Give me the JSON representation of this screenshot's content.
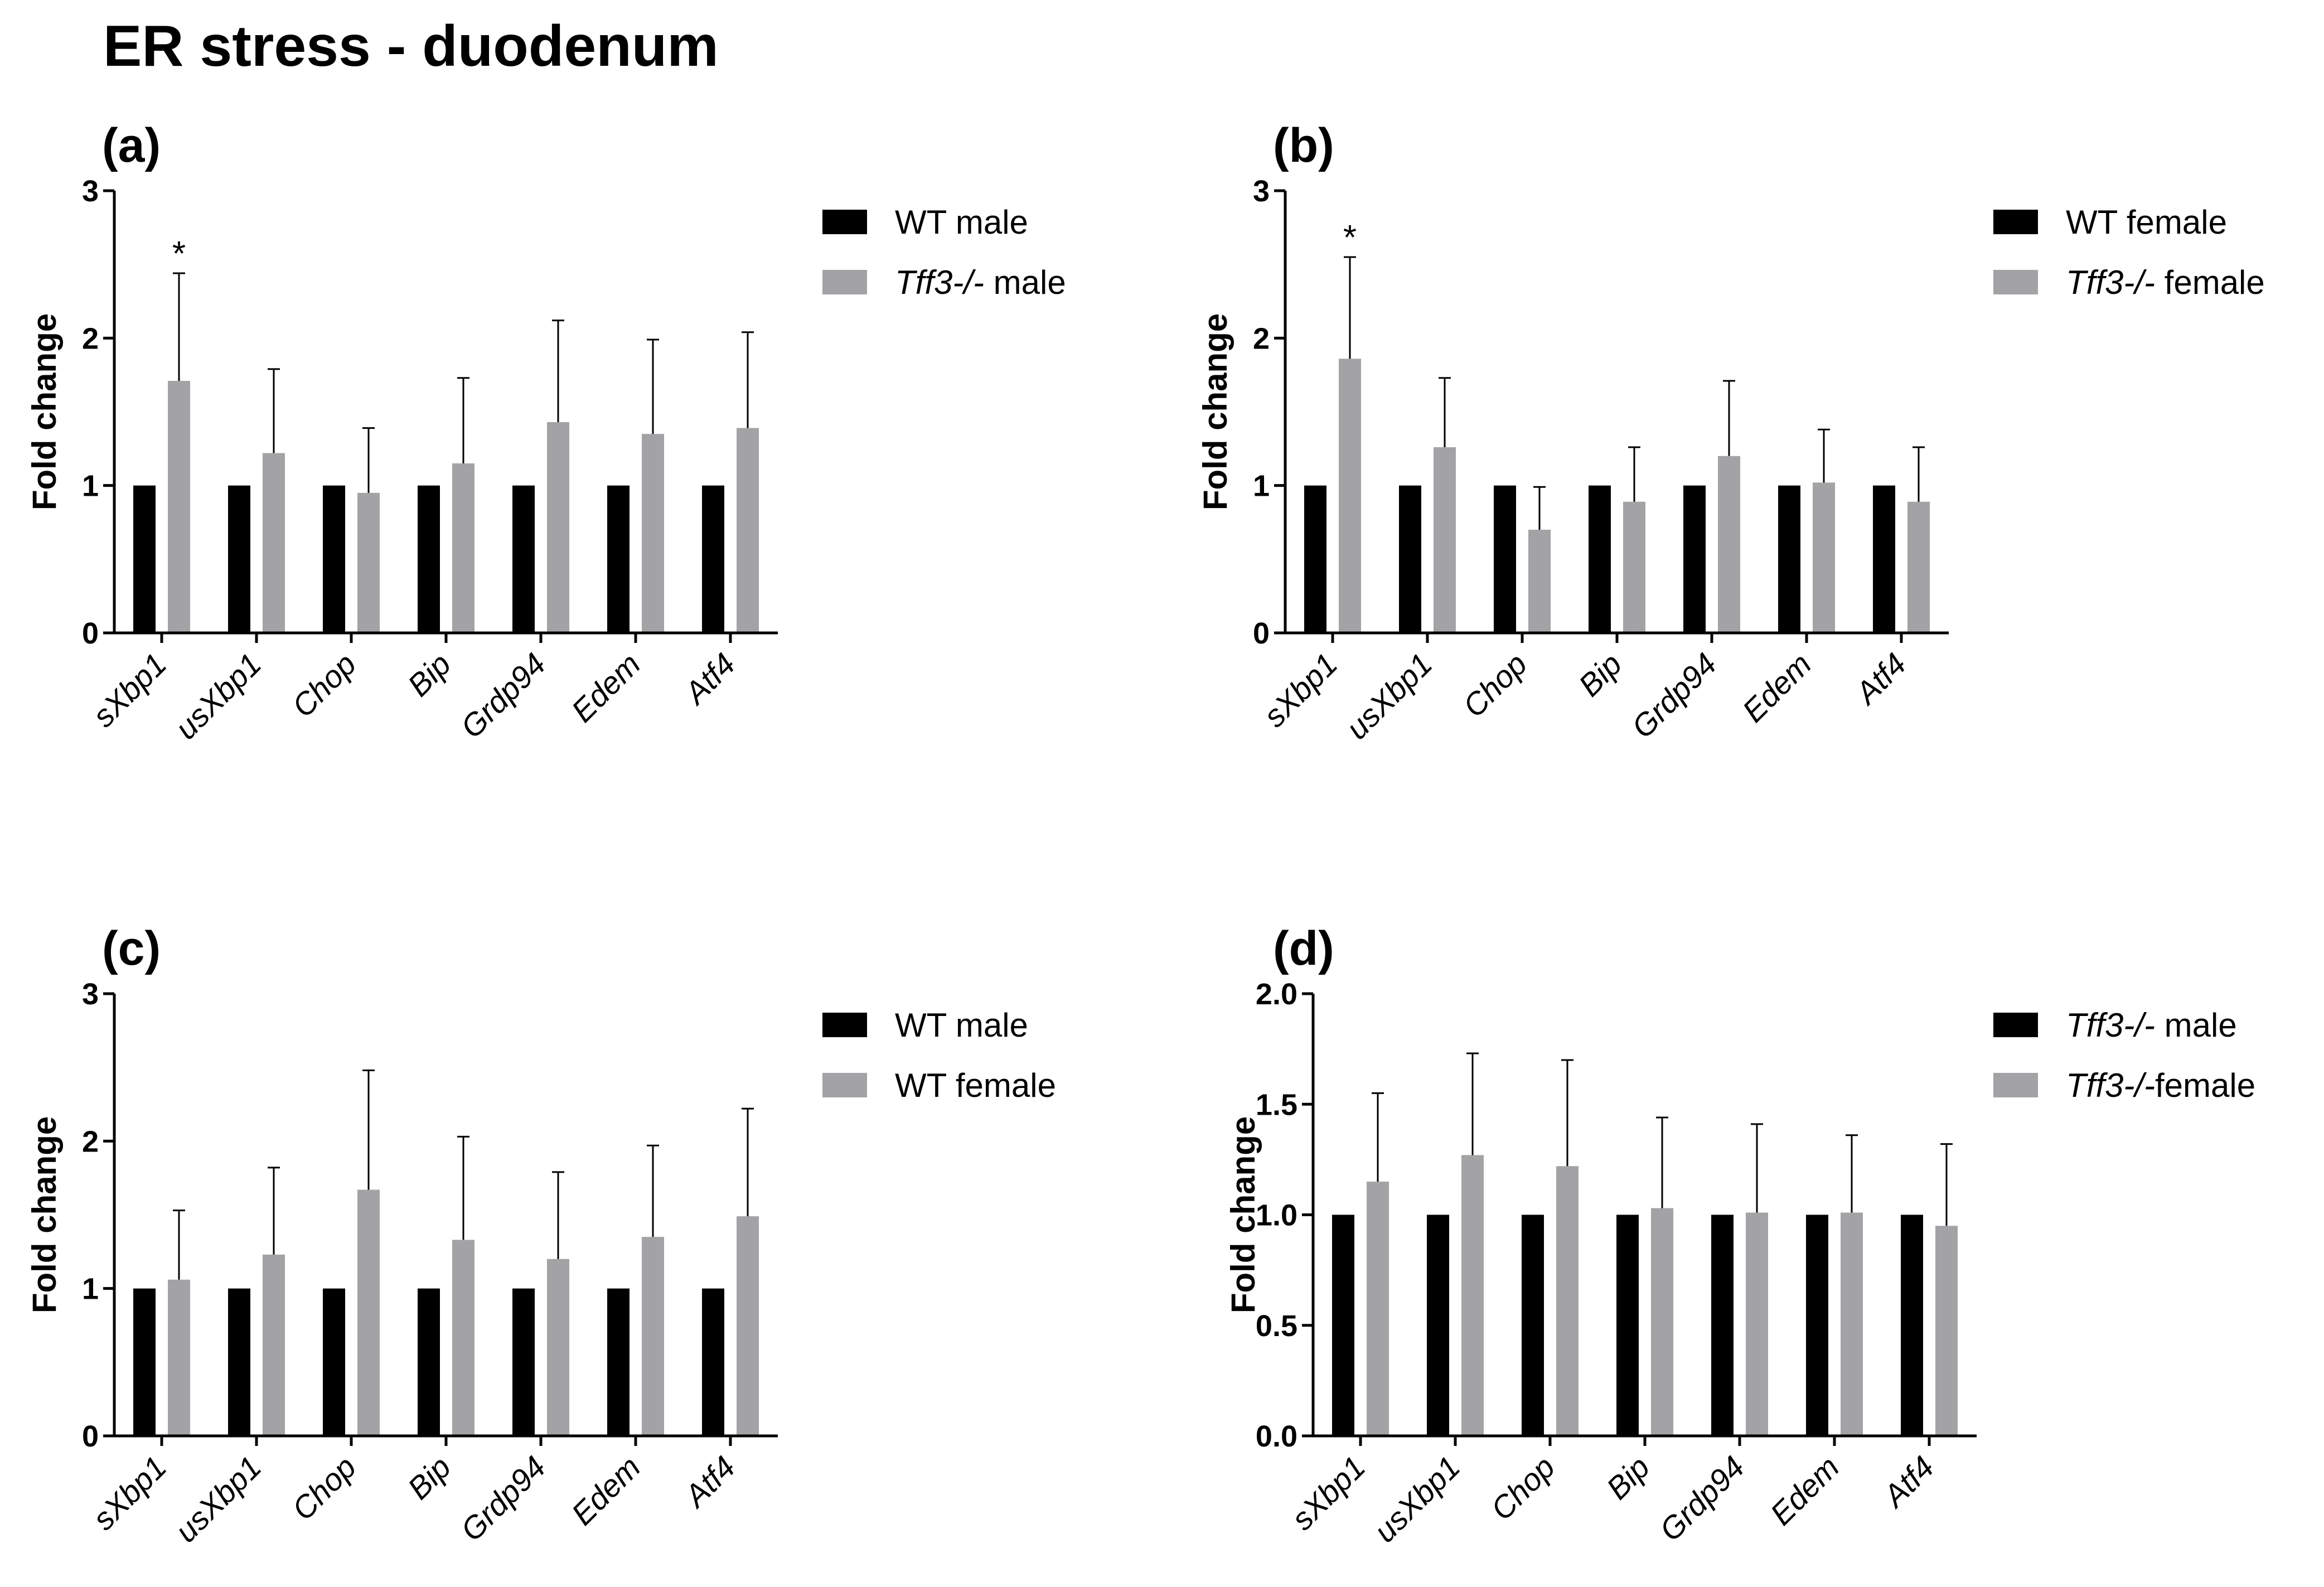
{
  "figure": {
    "title": "ER stress - duodenum"
  },
  "colors": {
    "series1": "#000000",
    "series2": "#a3a3a5",
    "axis": "#000000"
  },
  "chart_data": [
    {
      "panel": "(a)",
      "type": "bar",
      "ylabel": "Fold change",
      "ylim": [
        0,
        3
      ],
      "yticks": [
        "0",
        "1",
        "2",
        "3"
      ],
      "categories": [
        "sXbp1",
        "usXbp1",
        "Chop",
        "Bip",
        "Grdp94",
        "Edem",
        "Atf4"
      ],
      "legend": [
        {
          "parts": [
            {
              "text": "WT male",
              "italic": false
            }
          ]
        },
        {
          "parts": [
            {
              "text": "Tff3-/-",
              "italic": true
            },
            {
              "text": " male",
              "italic": false
            }
          ]
        }
      ],
      "series": [
        {
          "name": "WT male",
          "values": [
            1,
            1,
            1,
            1,
            1,
            1,
            1
          ]
        },
        {
          "name": "Tff3-/- male",
          "values": [
            1.71,
            1.22,
            0.95,
            1.15,
            1.43,
            1.35,
            1.39
          ],
          "errors": [
            0.73,
            0.57,
            0.44,
            0.58,
            0.69,
            0.64,
            0.65
          ]
        }
      ],
      "annotations": [
        {
          "category": "sXbp1",
          "text": "*"
        }
      ]
    },
    {
      "panel": "(b)",
      "type": "bar",
      "ylabel": "Fold change",
      "ylim": [
        0,
        3
      ],
      "yticks": [
        "0",
        "1",
        "2",
        "3"
      ],
      "categories": [
        "sXbp1",
        "usXbp1",
        "Chop",
        "Bip",
        "Grdp94",
        "Edem",
        "Atf4"
      ],
      "legend": [
        {
          "parts": [
            {
              "text": "WT female",
              "italic": false
            }
          ]
        },
        {
          "parts": [
            {
              "text": "Tff3-/-",
              "italic": true
            },
            {
              "text": " female",
              "italic": false
            }
          ]
        }
      ],
      "series": [
        {
          "name": "WT female",
          "values": [
            1,
            1,
            1,
            1,
            1,
            1,
            1
          ]
        },
        {
          "name": "Tff3-/- female",
          "values": [
            1.86,
            1.26,
            0.7,
            0.89,
            1.2,
            1.02,
            0.89
          ],
          "errors": [
            0.69,
            0.47,
            0.29,
            0.37,
            0.51,
            0.36,
            0.37
          ]
        }
      ],
      "annotations": [
        {
          "category": "sXbp1",
          "text": "*"
        }
      ]
    },
    {
      "panel": "(c)",
      "type": "bar",
      "ylabel": "Fold change",
      "ylim": [
        0,
        3
      ],
      "yticks": [
        "0",
        "1",
        "2",
        "3"
      ],
      "categories": [
        "sXbp1",
        "usXbp1",
        "Chop",
        "Bip",
        "Grdp94",
        "Edem",
        "Atf4"
      ],
      "legend": [
        {
          "parts": [
            {
              "text": "WT male",
              "italic": false
            }
          ]
        },
        {
          "parts": [
            {
              "text": "WT female",
              "italic": false
            }
          ]
        }
      ],
      "series": [
        {
          "name": "WT male",
          "values": [
            1,
            1,
            1,
            1,
            1,
            1,
            1
          ]
        },
        {
          "name": "WT female",
          "values": [
            1.06,
            1.23,
            1.67,
            1.33,
            1.2,
            1.35,
            1.49
          ],
          "errors": [
            0.47,
            0.59,
            0.81,
            0.7,
            0.59,
            0.62,
            0.73
          ]
        }
      ],
      "annotations": []
    },
    {
      "panel": "(d)",
      "type": "bar",
      "ylabel": "Fold change",
      "ylim": [
        0,
        2
      ],
      "yticks": [
        "0.0",
        "0.5",
        "1.0",
        "1.5",
        "2.0"
      ],
      "categories": [
        "sXbp1",
        "usXbp1",
        "Chop",
        "Bip",
        "Grdp94",
        "Edem",
        "Atf4"
      ],
      "legend": [
        {
          "parts": [
            {
              "text": "Tff3-/-",
              "italic": true
            },
            {
              "text": " male",
              "italic": false
            }
          ]
        },
        {
          "parts": [
            {
              "text": "Tff3-/-",
              "italic": true
            },
            {
              "text": "female",
              "italic": false
            }
          ]
        }
      ],
      "series": [
        {
          "name": "Tff3-/- male",
          "values": [
            1,
            1,
            1,
            1,
            1,
            1,
            1
          ]
        },
        {
          "name": "Tff3-/-female",
          "values": [
            1.15,
            1.27,
            1.22,
            1.03,
            1.01,
            1.01,
            0.95
          ],
          "errors": [
            0.4,
            0.46,
            0.48,
            0.41,
            0.4,
            0.35,
            0.37
          ]
        }
      ],
      "annotations": []
    }
  ]
}
